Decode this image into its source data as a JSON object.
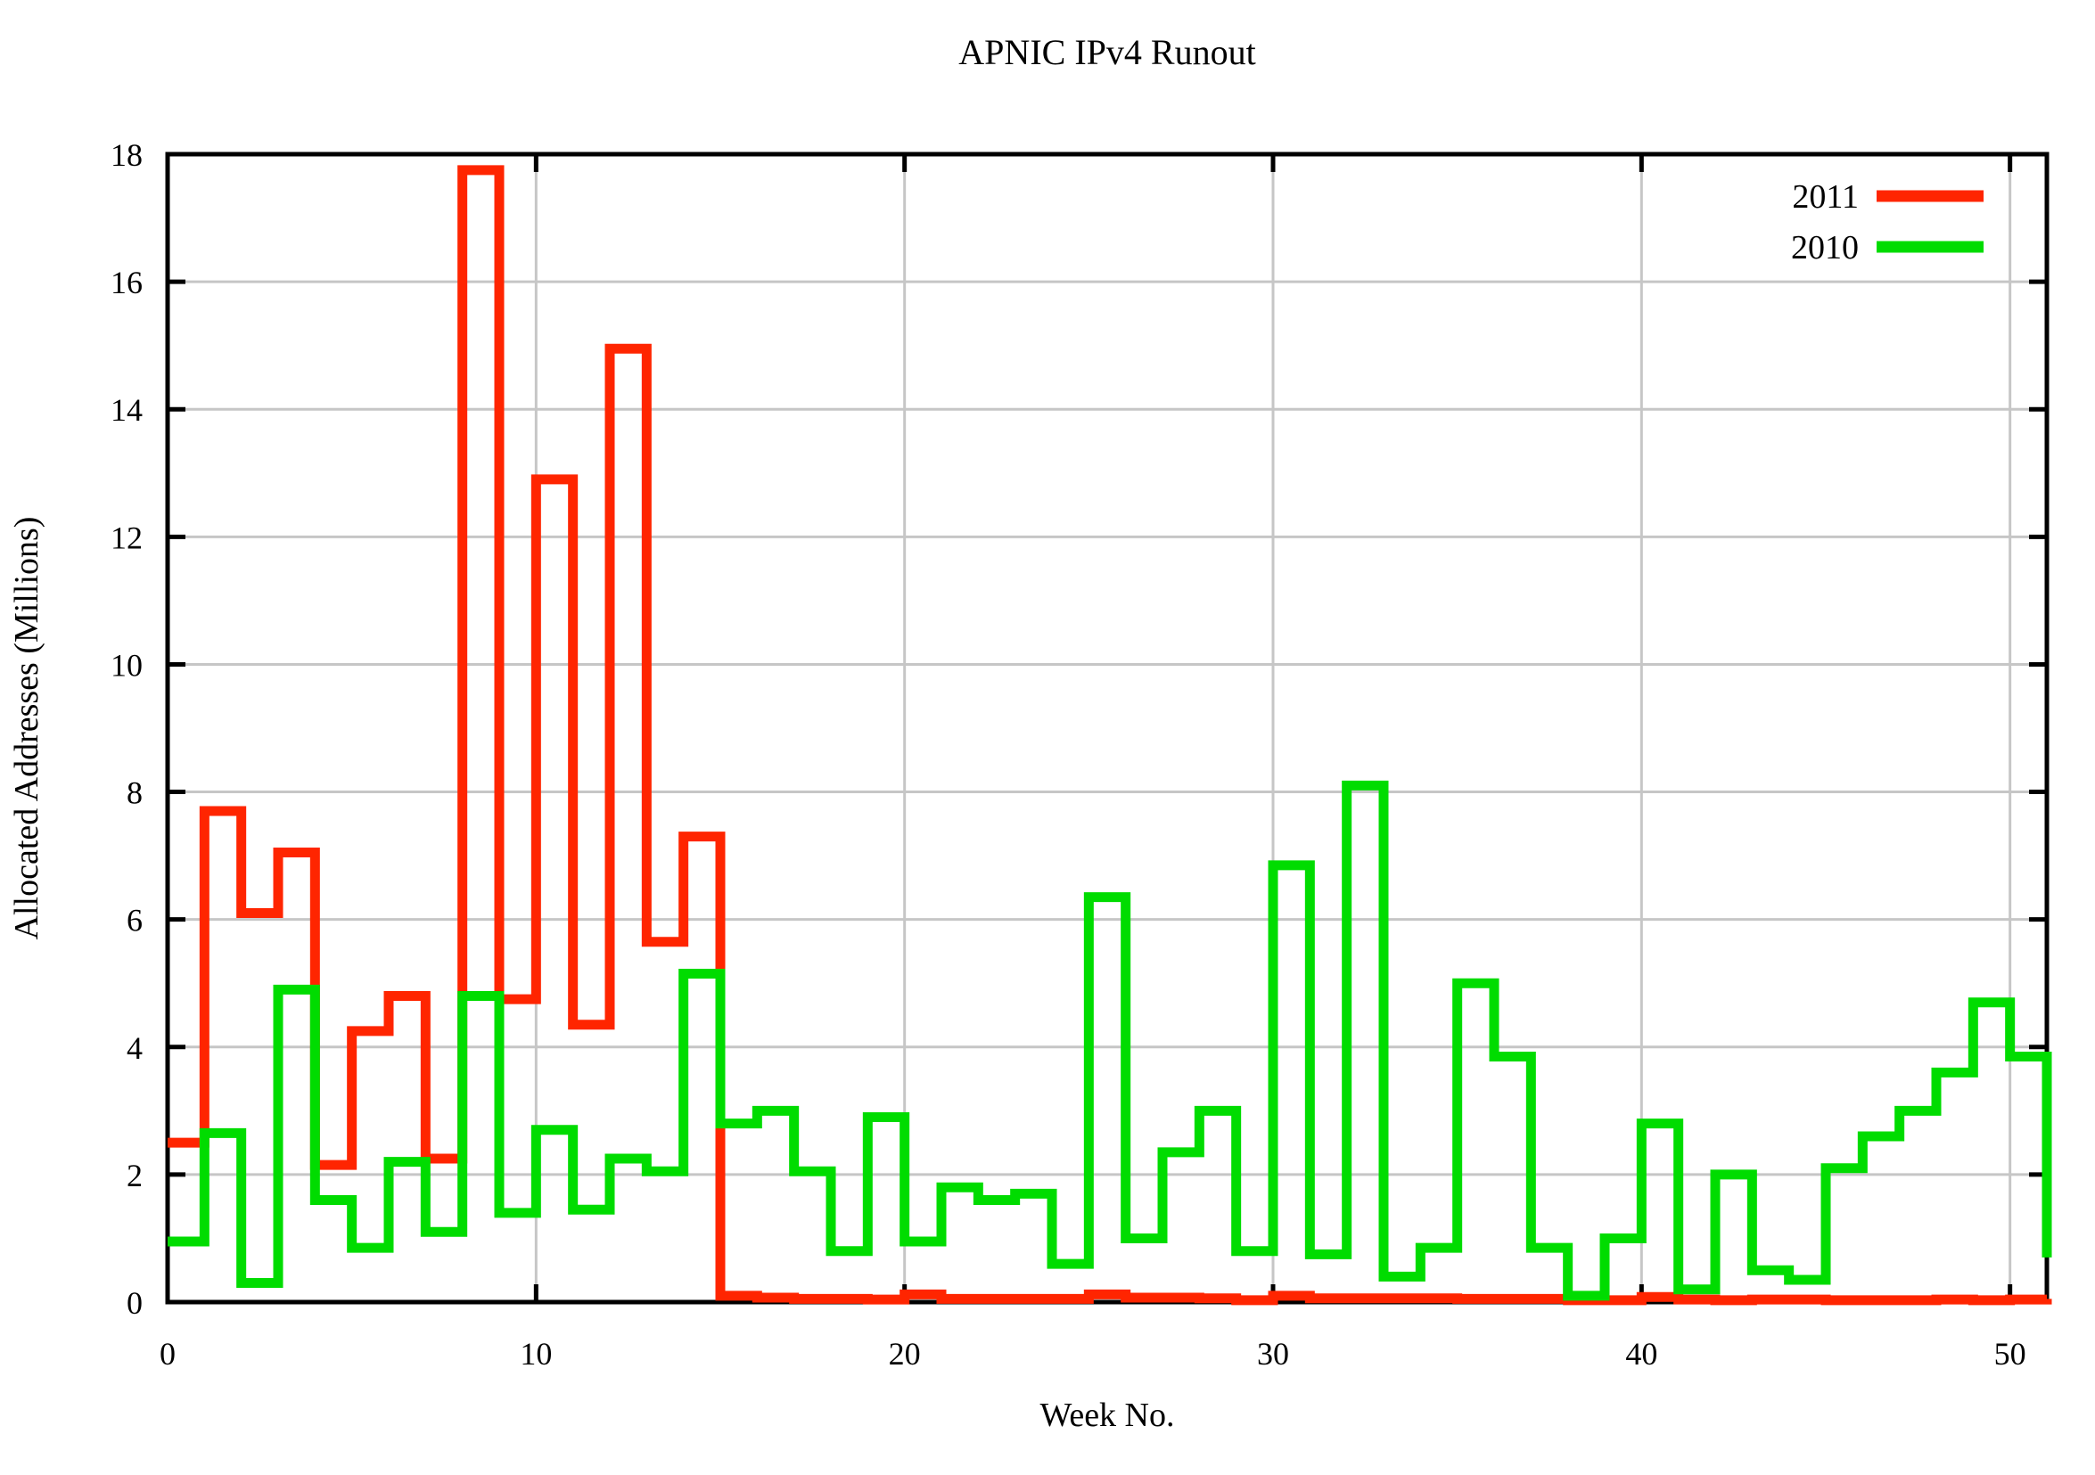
{
  "chart_data": {
    "type": "line",
    "line_style": "steps",
    "title": "APNIC IPv4 Runout",
    "xlabel": "Week No.",
    "ylabel": "Allocated Addresses (Millions)",
    "xlim": [
      0,
      51
    ],
    "ylim": [
      0,
      18
    ],
    "x_ticks": [
      0,
      10,
      20,
      30,
      40,
      50
    ],
    "y_ticks": [
      0,
      2,
      4,
      6,
      8,
      10,
      12,
      14,
      16,
      18
    ],
    "grid": true,
    "legend_position": "top-right-inside",
    "x": [
      0,
      1,
      2,
      3,
      4,
      5,
      6,
      7,
      8,
      9,
      10,
      11,
      12,
      13,
      14,
      15,
      16,
      17,
      18,
      19,
      20,
      21,
      22,
      23,
      24,
      25,
      26,
      27,
      28,
      29,
      30,
      31,
      32,
      33,
      34,
      35,
      36,
      37,
      38,
      39,
      40,
      41,
      42,
      43,
      44,
      45,
      46,
      47,
      48,
      49,
      50,
      51
    ],
    "series": [
      {
        "name": "2011",
        "color": "#ff2500",
        "values": [
          2.5,
          7.7,
          6.1,
          7.05,
          2.15,
          4.25,
          4.8,
          2.25,
          17.75,
          4.75,
          12.9,
          4.35,
          14.95,
          5.65,
          7.3,
          0.1,
          0.07,
          0.05,
          0.05,
          0.04,
          0.12,
          0.05,
          0.05,
          0.05,
          0.05,
          0.12,
          0.07,
          0.07,
          0.06,
          0.03,
          0.1,
          0.06,
          0.06,
          0.06,
          0.06,
          0.05,
          0.05,
          0.05,
          0.03,
          0.03,
          0.08,
          0.04,
          0.03,
          0.04,
          0.04,
          0.03,
          0.03,
          0.03,
          0.04,
          0.03,
          0.04,
          0.05
        ]
      },
      {
        "name": "2010",
        "color": "#00dc00",
        "values": [
          0.95,
          2.65,
          0.3,
          4.9,
          1.6,
          0.85,
          2.2,
          1.1,
          4.8,
          1.4,
          2.7,
          1.45,
          2.25,
          2.05,
          5.15,
          2.8,
          3.0,
          2.05,
          0.8,
          2.9,
          0.95,
          1.8,
          1.6,
          1.7,
          0.6,
          6.35,
          1.0,
          2.35,
          3.0,
          0.8,
          6.85,
          0.75,
          8.1,
          0.4,
          0.85,
          5.0,
          3.85,
          0.85,
          0.1,
          1.0,
          2.8,
          0.2,
          2.0,
          0.5,
          0.35,
          2.1,
          2.6,
          3.0,
          3.6,
          4.7,
          3.85,
          0.7
        ]
      }
    ]
  },
  "legend": {
    "entries": [
      "2011",
      "2010"
    ]
  },
  "colors": {
    "background": "#ffffff",
    "grid": "#c6c6c6",
    "axis": "#000000",
    "series_2011": "#ff2500",
    "series_2010": "#00dc00"
  }
}
